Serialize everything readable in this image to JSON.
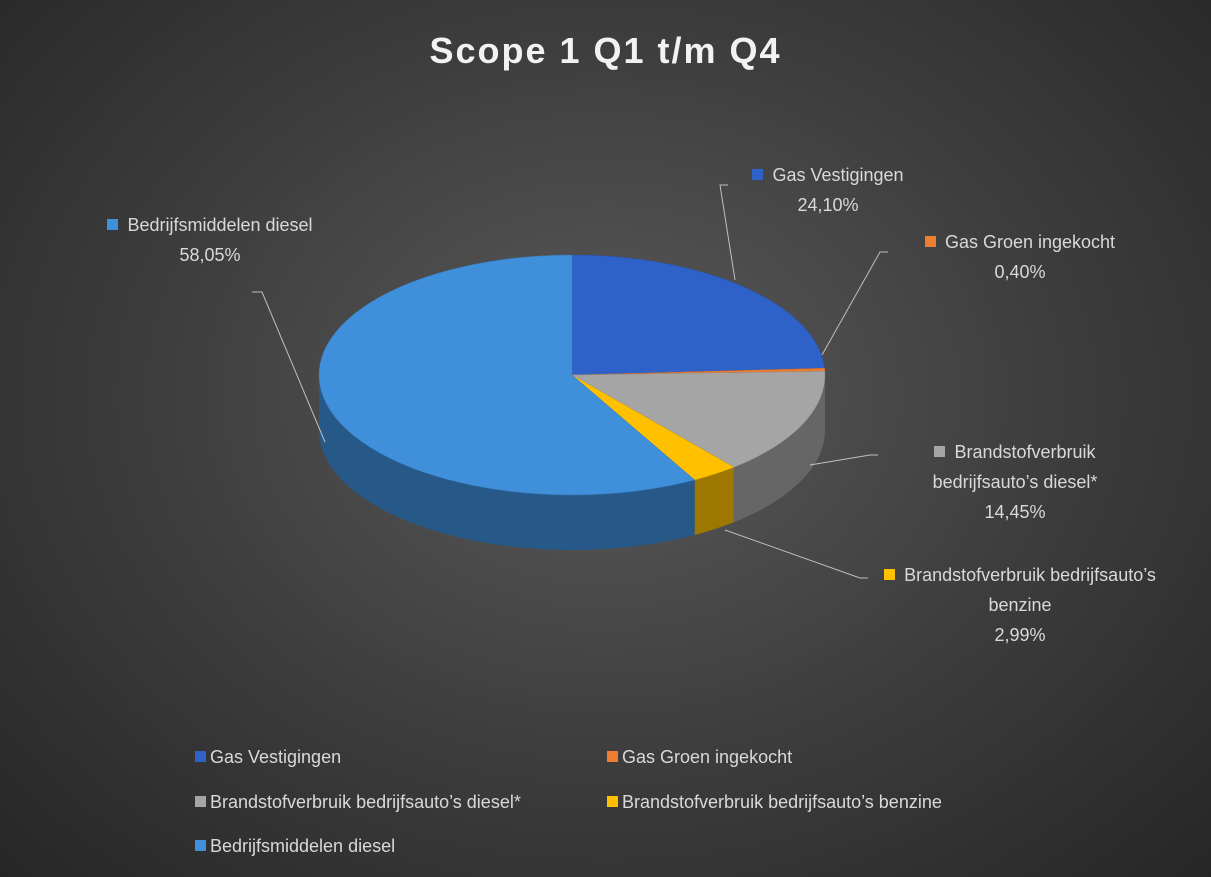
{
  "chart_data": {
    "type": "pie3d",
    "title": "Scope 1 Q1 t/m Q4",
    "categories": [
      "Gas Vestigingen",
      "Gas Groen ingekocht",
      "Brandstofverbruik bedrijfsauto’s diesel*",
      "Brandstofverbruik bedrijfsauto’s benzine",
      "Bedrijfsmiddelen diesel"
    ],
    "values": [
      24.1,
      0.4,
      14.45,
      2.99,
      58.05
    ],
    "value_labels": [
      "24,10%",
      "0,40%",
      "14,45%",
      "2,99%",
      "58,05%"
    ],
    "colors": [
      "#2f62c8",
      "#ed7d31",
      "#a5a5a5",
      "#ffc000",
      "#3f8fdb"
    ],
    "legend": "bottom"
  }
}
